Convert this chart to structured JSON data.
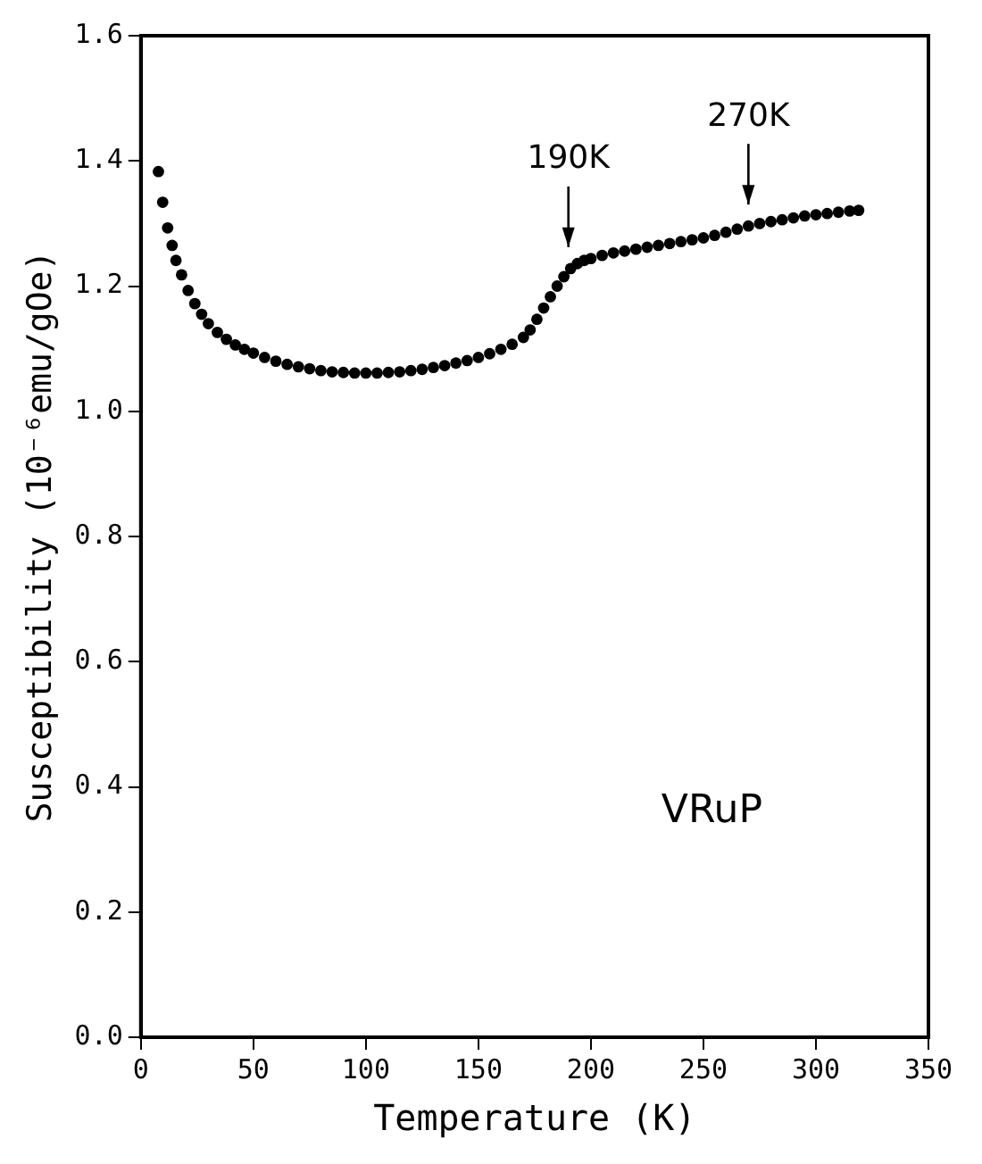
{
  "chart_data": {
    "type": "scatter",
    "xlabel": "Temperature (K)",
    "ylabel": "Susceptibility (10⁻⁶emu/gOe)",
    "x": [
      7.8,
      9.7,
      11.9,
      13.9,
      15.6,
      18.1,
      21,
      24,
      27,
      30,
      34,
      38,
      42,
      46,
      50,
      55,
      60,
      65,
      70,
      75,
      80,
      85,
      90,
      95,
      100,
      105,
      110,
      115,
      120,
      125,
      130,
      135,
      140,
      145,
      150,
      155,
      160,
      165,
      170,
      173,
      176,
      179,
      182,
      185,
      188,
      191,
      194,
      197,
      200,
      205,
      210,
      215,
      220,
      225,
      230,
      235,
      240,
      245,
      250,
      255,
      260,
      265,
      270,
      275,
      280,
      285,
      290,
      295,
      300,
      305,
      310,
      315,
      319
    ],
    "series": [
      {
        "color": "#000000",
        "values": [
          1.383,
          1.334,
          1.293,
          1.265,
          1.241,
          1.218,
          1.193,
          1.172,
          1.155,
          1.14,
          1.126,
          1.115,
          1.106,
          1.099,
          1.093,
          1.086,
          1.08,
          1.075,
          1.071,
          1.068,
          1.065,
          1.063,
          1.062,
          1.061,
          1.061,
          1.061,
          1.062,
          1.063,
          1.065,
          1.067,
          1.07,
          1.073,
          1.077,
          1.081,
          1.086,
          1.092,
          1.099,
          1.107,
          1.118,
          1.13,
          1.147,
          1.165,
          1.183,
          1.2,
          1.215,
          1.228,
          1.236,
          1.241,
          1.244,
          1.249,
          1.253,
          1.256,
          1.259,
          1.262,
          1.265,
          1.268,
          1.271,
          1.274,
          1.277,
          1.281,
          1.286,
          1.291,
          1.296,
          1.3,
          1.303,
          1.306,
          1.309,
          1.312,
          1.314,
          1.316,
          1.318,
          1.32,
          1.321
        ]
      }
    ],
    "xlim": [
      0,
      350
    ],
    "xticks": [
      0,
      50,
      100,
      150,
      200,
      250,
      300,
      350
    ],
    "ylim": [
      0,
      1.6
    ],
    "yticks": [
      {
        "value": 0,
        "label": "0.0"
      },
      {
        "value": 0.2,
        "label": "0.2"
      },
      {
        "value": 0.4,
        "label": "0.4"
      },
      {
        "value": 0.6,
        "label": "0.6"
      },
      {
        "value": 0.8,
        "label": "0.8"
      },
      {
        "value": 1,
        "label": "1.0"
      },
      {
        "value": 1.2,
        "label": "1.2"
      },
      {
        "value": 1.4,
        "label": "1.4"
      },
      {
        "value": 1.6,
        "label": "1.6"
      }
    ],
    "marker": "circle",
    "grid": false,
    "legend": false,
    "annotations": [
      {
        "text": "190K",
        "x": 190,
        "y": 1.228
      },
      {
        "text": "270K",
        "x": 270,
        "y": 1.296
      },
      "VRuP"
    ]
  }
}
